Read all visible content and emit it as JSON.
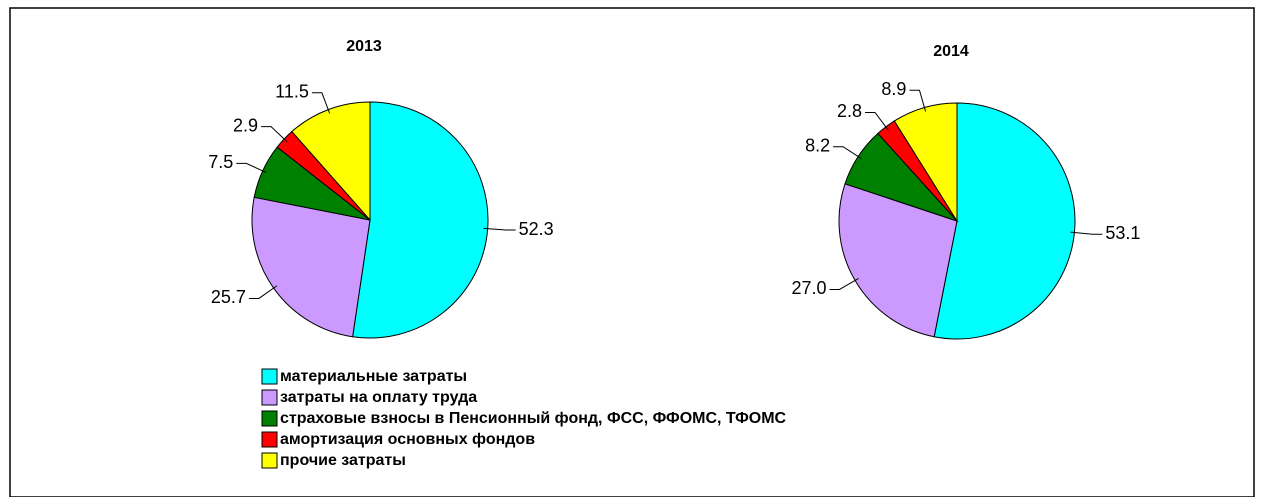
{
  "chart_data": [
    {
      "type": "pie",
      "title": "2013",
      "values": [
        52.3,
        25.7,
        7.5,
        2.9,
        11.5
      ]
    },
    {
      "type": "pie",
      "title": "2014",
      "values": [
        53.1,
        27.0,
        8.2,
        2.8,
        8.9
      ],
      "value_labels": [
        "53.1",
        "27.0",
        "8.2",
        "2.8",
        "8.9"
      ]
    }
  ],
  "legend": {
    "categories": [
      "материальные затраты",
      "затраты на оплату труда",
      "страховые взносы в Пенсионный фонд, ФСС, ФФОМС, ТФОМС",
      "амортизация основных фондов",
      "прочие затраты"
    ],
    "colors": [
      "#00ffff",
      "#cc99ff",
      "#008000",
      "#ff0000",
      "#ffff00"
    ]
  }
}
